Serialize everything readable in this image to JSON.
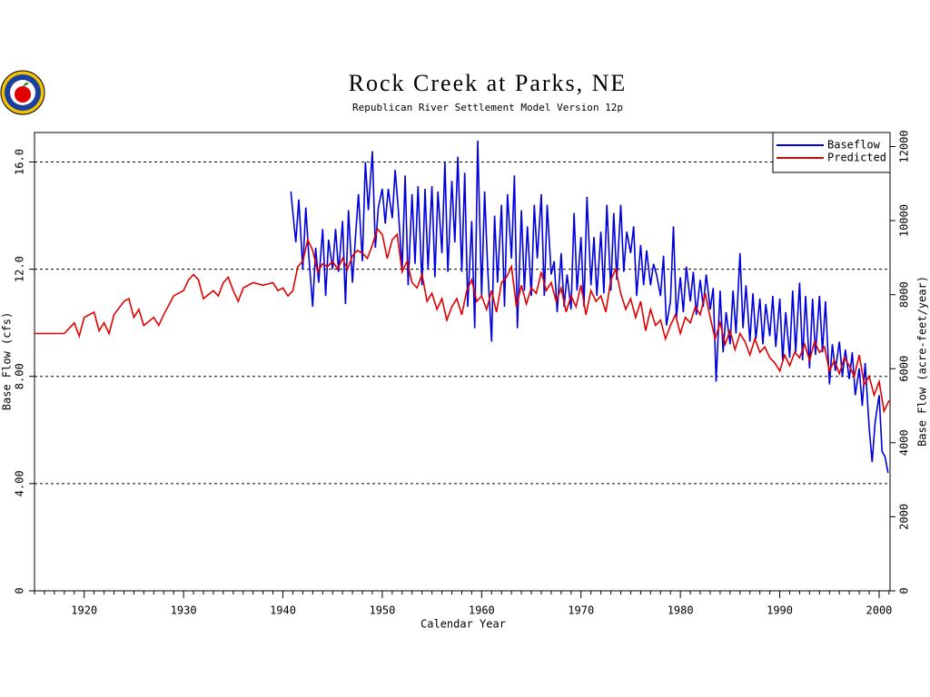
{
  "chart_data": {
    "type": "line",
    "title": "Rock Creek at Parks, NE",
    "subtitle": "Republican River Settlement Model Version 12p",
    "xlabel": "Calendar Year",
    "ylabel": "Base Flow (cfs)",
    "y2label": "Base Flow (acre-feet/year)",
    "xlim": [
      1915,
      2001.1
    ],
    "xticks": [
      1920,
      1930,
      1940,
      1950,
      1960,
      1970,
      1980,
      1990,
      2000
    ],
    "xminorticks": [
      1915,
      1916,
      1917,
      1918,
      1919,
      1921,
      1922,
      1923,
      1924,
      1925,
      1926,
      1927,
      1928,
      1929,
      1931,
      1932,
      1933,
      1934,
      1935,
      1936,
      1937,
      1938,
      1939,
      1941,
      1942,
      1943,
      1944,
      1945,
      1946,
      1947,
      1948,
      1949,
      1951,
      1952,
      1953,
      1954,
      1955,
      1956,
      1957,
      1958,
      1959,
      1961,
      1962,
      1963,
      1964,
      1965,
      1966,
      1967,
      1968,
      1969,
      1971,
      1972,
      1973,
      1974,
      1975,
      1976,
      1977,
      1978,
      1979,
      1981,
      1982,
      1983,
      1984,
      1985,
      1986,
      1987,
      1988,
      1989,
      1991,
      1992,
      1993,
      1994,
      1995,
      1996,
      1997,
      1998,
      1999,
      2001
    ],
    "ylim": [
      0,
      17.1
    ],
    "yticks": [
      0,
      {
        "value": 4,
        "label": "4.00"
      },
      {
        "value": 8,
        "label": "8.00"
      },
      {
        "value": 12,
        "label": "12.0"
      },
      {
        "value": 16,
        "label": "16.0"
      }
    ],
    "y2lim": [
      0,
      12380
    ],
    "y2ticks": [
      0,
      2000,
      4000,
      6000,
      8000,
      10000,
      12000
    ],
    "grid": true,
    "legend": "upper right",
    "series": [
      {
        "name": "Baseflow",
        "color": "#0000dd",
        "x": [
          1940.8,
          1941,
          1941.3,
          1941.6,
          1942,
          1942.3,
          1942.6,
          1943,
          1943.3,
          1943.6,
          1944,
          1944.3,
          1944.6,
          1945,
          1945.3,
          1945.6,
          1946,
          1946.3,
          1946.6,
          1947,
          1947.3,
          1947.6,
          1948,
          1948.3,
          1948.6,
          1949,
          1949.3,
          1949.6,
          1950,
          1950.3,
          1950.6,
          1951,
          1951.3,
          1951.6,
          1952,
          1952.3,
          1952.6,
          1953,
          1953.3,
          1953.6,
          1954,
          1954.3,
          1954.6,
          1955,
          1955.3,
          1955.6,
          1956,
          1956.3,
          1956.6,
          1957,
          1957.3,
          1957.6,
          1958,
          1958.3,
          1958.6,
          1959,
          1959.3,
          1959.6,
          1960,
          1960.3,
          1960.6,
          1961,
          1961.3,
          1961.6,
          1962,
          1962.3,
          1962.6,
          1963,
          1963.3,
          1963.6,
          1964,
          1964.3,
          1964.6,
          1965,
          1965.3,
          1965.6,
          1966,
          1966.3,
          1966.6,
          1967,
          1967.3,
          1967.6,
          1968,
          1968.3,
          1968.6,
          1969,
          1969.3,
          1969.6,
          1970,
          1970.3,
          1970.6,
          1971,
          1971.3,
          1971.6,
          1972,
          1972.3,
          1972.6,
          1973,
          1973.3,
          1973.6,
          1974,
          1974.3,
          1974.6,
          1975,
          1975.3,
          1975.6,
          1976,
          1976.3,
          1976.6,
          1977,
          1977.3,
          1977.6,
          1978,
          1978.3,
          1978.6,
          1979,
          1979.3,
          1979.6,
          1980,
          1980.3,
          1980.6,
          1981,
          1981.3,
          1981.6,
          1982,
          1982.3,
          1982.6,
          1983,
          1983.3,
          1983.6,
          1984,
          1984.3,
          1984.6,
          1985,
          1985.3,
          1985.6,
          1986,
          1986.3,
          1986.6,
          1987,
          1987.3,
          1987.6,
          1988,
          1988.3,
          1988.6,
          1989,
          1989.3,
          1989.6,
          1990,
          1990.3,
          1990.6,
          1991,
          1991.3,
          1991.6,
          1992,
          1992.3,
          1992.6,
          1993,
          1993.3,
          1993.6,
          1994,
          1994.3,
          1994.6,
          1995,
          1995.3,
          1995.6,
          1996,
          1996.3,
          1996.6,
          1997,
          1997.3,
          1997.6,
          1998,
          1998.3,
          1998.6,
          1999,
          1999.3,
          1999.6,
          2000,
          2000.3,
          2000.6,
          2000.9
        ],
        "values": [
          14.9,
          14.1,
          13.0,
          14.6,
          12.0,
          14.3,
          12.5,
          10.6,
          12.8,
          11.5,
          13.5,
          11.0,
          13.1,
          12.0,
          13.5,
          11.9,
          13.8,
          10.7,
          14.2,
          11.5,
          13.2,
          14.8,
          12.3,
          16.0,
          14.2,
          16.4,
          12.8,
          14.3,
          15.0,
          13.7,
          15.0,
          13.9,
          15.7,
          14.3,
          12.0,
          15.5,
          11.4,
          14.8,
          12.2,
          15.1,
          11.4,
          15.0,
          12.0,
          15.1,
          11.7,
          14.9,
          12.6,
          16.0,
          11.9,
          15.3,
          13.0,
          16.2,
          11.9,
          15.6,
          10.6,
          13.8,
          9.8,
          16.8,
          11.0,
          14.9,
          12.1,
          9.3,
          14.0,
          11.5,
          14.4,
          10.6,
          14.8,
          12.4,
          15.5,
          9.8,
          14.2,
          11.2,
          13.6,
          11.0,
          14.4,
          12.4,
          14.8,
          11.0,
          14.4,
          11.8,
          12.3,
          10.4,
          12.6,
          10.6,
          11.8,
          10.5,
          14.1,
          11.2,
          13.2,
          10.6,
          14.7,
          11.4,
          13.2,
          11.0,
          13.4,
          11.1,
          14.4,
          11.2,
          14.1,
          11.6,
          14.4,
          11.9,
          13.4,
          12.6,
          13.6,
          11.0,
          12.9,
          11.4,
          12.7,
          11.4,
          12.2,
          11.8,
          11.0,
          12.5,
          9.9,
          10.8,
          13.6,
          10.2,
          11.7,
          10.4,
          12.1,
          10.8,
          11.9,
          10.3,
          11.6,
          10.6,
          11.8,
          10.5,
          11.3,
          7.8,
          11.2,
          8.9,
          10.4,
          9.2,
          11.2,
          9.6,
          12.6,
          9.8,
          11.4,
          9.3,
          11.1,
          9.4,
          10.9,
          9.2,
          10.7,
          9.5,
          11.0,
          9.1,
          10.9,
          8.6,
          10.4,
          8.7,
          11.2,
          8.9,
          11.5,
          8.6,
          11.0,
          8.3,
          10.9,
          8.8,
          11.0,
          8.9,
          10.8,
          7.7,
          9.2,
          8.2,
          9.3,
          8.0,
          9.0,
          7.9,
          8.9,
          7.3,
          8.3,
          6.9,
          8.5,
          6.1,
          4.8,
          6.3,
          7.3,
          5.2,
          5.0,
          4.4
        ]
      },
      {
        "name": "Predicted",
        "color": "#e00000",
        "x": [
          1915,
          1918,
          1918.5,
          1919,
          1919.5,
          1920,
          1921,
          1921.5,
          1922,
          1922.5,
          1923,
          1924,
          1924.5,
          1925,
          1925.5,
          1926,
          1927,
          1927.5,
          1928,
          1929,
          1930,
          1930.5,
          1931,
          1931.5,
          1932,
          1933,
          1933.5,
          1934,
          1934.5,
          1935,
          1935.5,
          1936,
          1937,
          1938,
          1939,
          1939.5,
          1940,
          1940.5,
          1941,
          1941.5,
          1942,
          1942.5,
          1943,
          1943.5,
          1944,
          1944.5,
          1945,
          1945.5,
          1946,
          1946.5,
          1947,
          1947.5,
          1948,
          1948.5,
          1949,
          1949.5,
          1950,
          1950.5,
          1951,
          1951.5,
          1952,
          1952.5,
          1953,
          1953.5,
          1954,
          1954.5,
          1955,
          1955.5,
          1956,
          1956.5,
          1957,
          1957.5,
          1958,
          1958.5,
          1959,
          1959.5,
          1960,
          1960.5,
          1961,
          1961.5,
          1962,
          1962.5,
          1963,
          1963.5,
          1964,
          1964.5,
          1965,
          1965.5,
          1966,
          1966.5,
          1967,
          1967.5,
          1968,
          1968.5,
          1969,
          1969.5,
          1970,
          1970.5,
          1971,
          1971.5,
          1972,
          1972.5,
          1973,
          1973.5,
          1974,
          1974.5,
          1975,
          1975.5,
          1976,
          1976.5,
          1977,
          1977.5,
          1978,
          1978.5,
          1979,
          1979.5,
          1980,
          1980.5,
          1981,
          1981.5,
          1982,
          1982.5,
          1983,
          1983.5,
          1984,
          1984.5,
          1985,
          1985.5,
          1986,
          1986.5,
          1987,
          1987.5,
          1988,
          1988.5,
          1989,
          1989.5,
          1990,
          1990.5,
          1991,
          1991.5,
          1992,
          1992.5,
          1993,
          1993.5,
          1994,
          1994.5,
          1995,
          1995.5,
          1996,
          1996.5,
          1997,
          1997.5,
          1998,
          1998.5,
          1999,
          1999.5,
          2000,
          2000.5,
          2001
        ],
        "values": [
          9.6,
          9.6,
          9.8,
          10.0,
          9.5,
          10.2,
          10.4,
          9.7,
          10.0,
          9.6,
          10.3,
          10.8,
          10.9,
          10.2,
          10.5,
          9.9,
          10.2,
          9.9,
          10.3,
          11.0,
          11.2,
          11.6,
          11.8,
          11.6,
          10.9,
          11.2,
          11.0,
          11.5,
          11.7,
          11.2,
          10.8,
          11.3,
          11.5,
          11.4,
          11.5,
          11.2,
          11.3,
          11.0,
          11.2,
          12.1,
          12.3,
          13.1,
          12.7,
          11.9,
          12.2,
          12.1,
          12.3,
          12.0,
          12.4,
          12.0,
          12.5,
          12.7,
          12.6,
          12.4,
          12.9,
          13.5,
          13.3,
          12.4,
          13.1,
          13.3,
          11.9,
          12.3,
          11.5,
          11.3,
          11.8,
          10.8,
          11.1,
          10.5,
          10.9,
          10.1,
          10.6,
          10.9,
          10.3,
          11.2,
          11.6,
          10.8,
          11.0,
          10.5,
          11.2,
          10.4,
          11.5,
          11.7,
          12.1,
          10.6,
          11.4,
          10.7,
          11.3,
          11.1,
          11.9,
          11.2,
          11.5,
          10.8,
          11.3,
          10.4,
          11.0,
          10.6,
          11.4,
          10.3,
          11.2,
          10.8,
          11.0,
          10.4,
          11.6,
          12.0,
          11.1,
          10.5,
          10.9,
          10.2,
          10.8,
          9.7,
          10.5,
          9.9,
          10.1,
          9.4,
          9.9,
          10.3,
          9.6,
          10.2,
          10.0,
          10.6,
          10.3,
          11.1,
          10.2,
          9.4,
          10.0,
          9.2,
          9.7,
          9.0,
          9.6,
          9.3,
          8.8,
          9.4,
          8.9,
          9.1,
          8.7,
          8.5,
          8.2,
          8.8,
          8.4,
          8.9,
          8.7,
          9.2,
          8.6,
          9.3,
          8.9,
          9.1,
          8.2,
          8.6,
          8.1,
          8.7,
          8.4,
          8.0,
          8.8,
          7.7,
          8.0,
          7.3,
          7.8,
          6.7,
          7.1
        ]
      }
    ]
  }
}
